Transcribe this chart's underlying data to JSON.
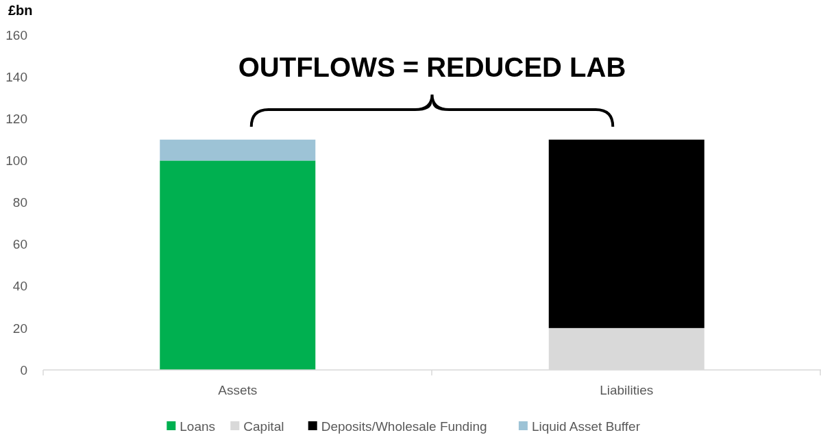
{
  "chart_data": {
    "type": "bar",
    "stacked": true,
    "ylabel": "£bn",
    "categories": [
      "Assets",
      "Liabilities"
    ],
    "series": [
      {
        "name": "Loans",
        "color": "#00b050",
        "values": [
          100,
          null
        ]
      },
      {
        "name": "Capital",
        "color": "#d9d9d9",
        "values": [
          null,
          20
        ]
      },
      {
        "name": "Deposits/Wholesale Funding",
        "color": "#000000",
        "values": [
          null,
          90
        ]
      },
      {
        "name": "Liquid Asset Buffer",
        "color": "#9dc3d6",
        "values": [
          10,
          null
        ]
      }
    ],
    "ylim": [
      0,
      160
    ],
    "yticks": [
      0,
      20,
      40,
      60,
      80,
      100,
      120,
      140,
      160
    ],
    "grid": false,
    "legend": "bottom",
    "annotations": [
      "OUTFLOWS = REDUCED LAB"
    ]
  }
}
